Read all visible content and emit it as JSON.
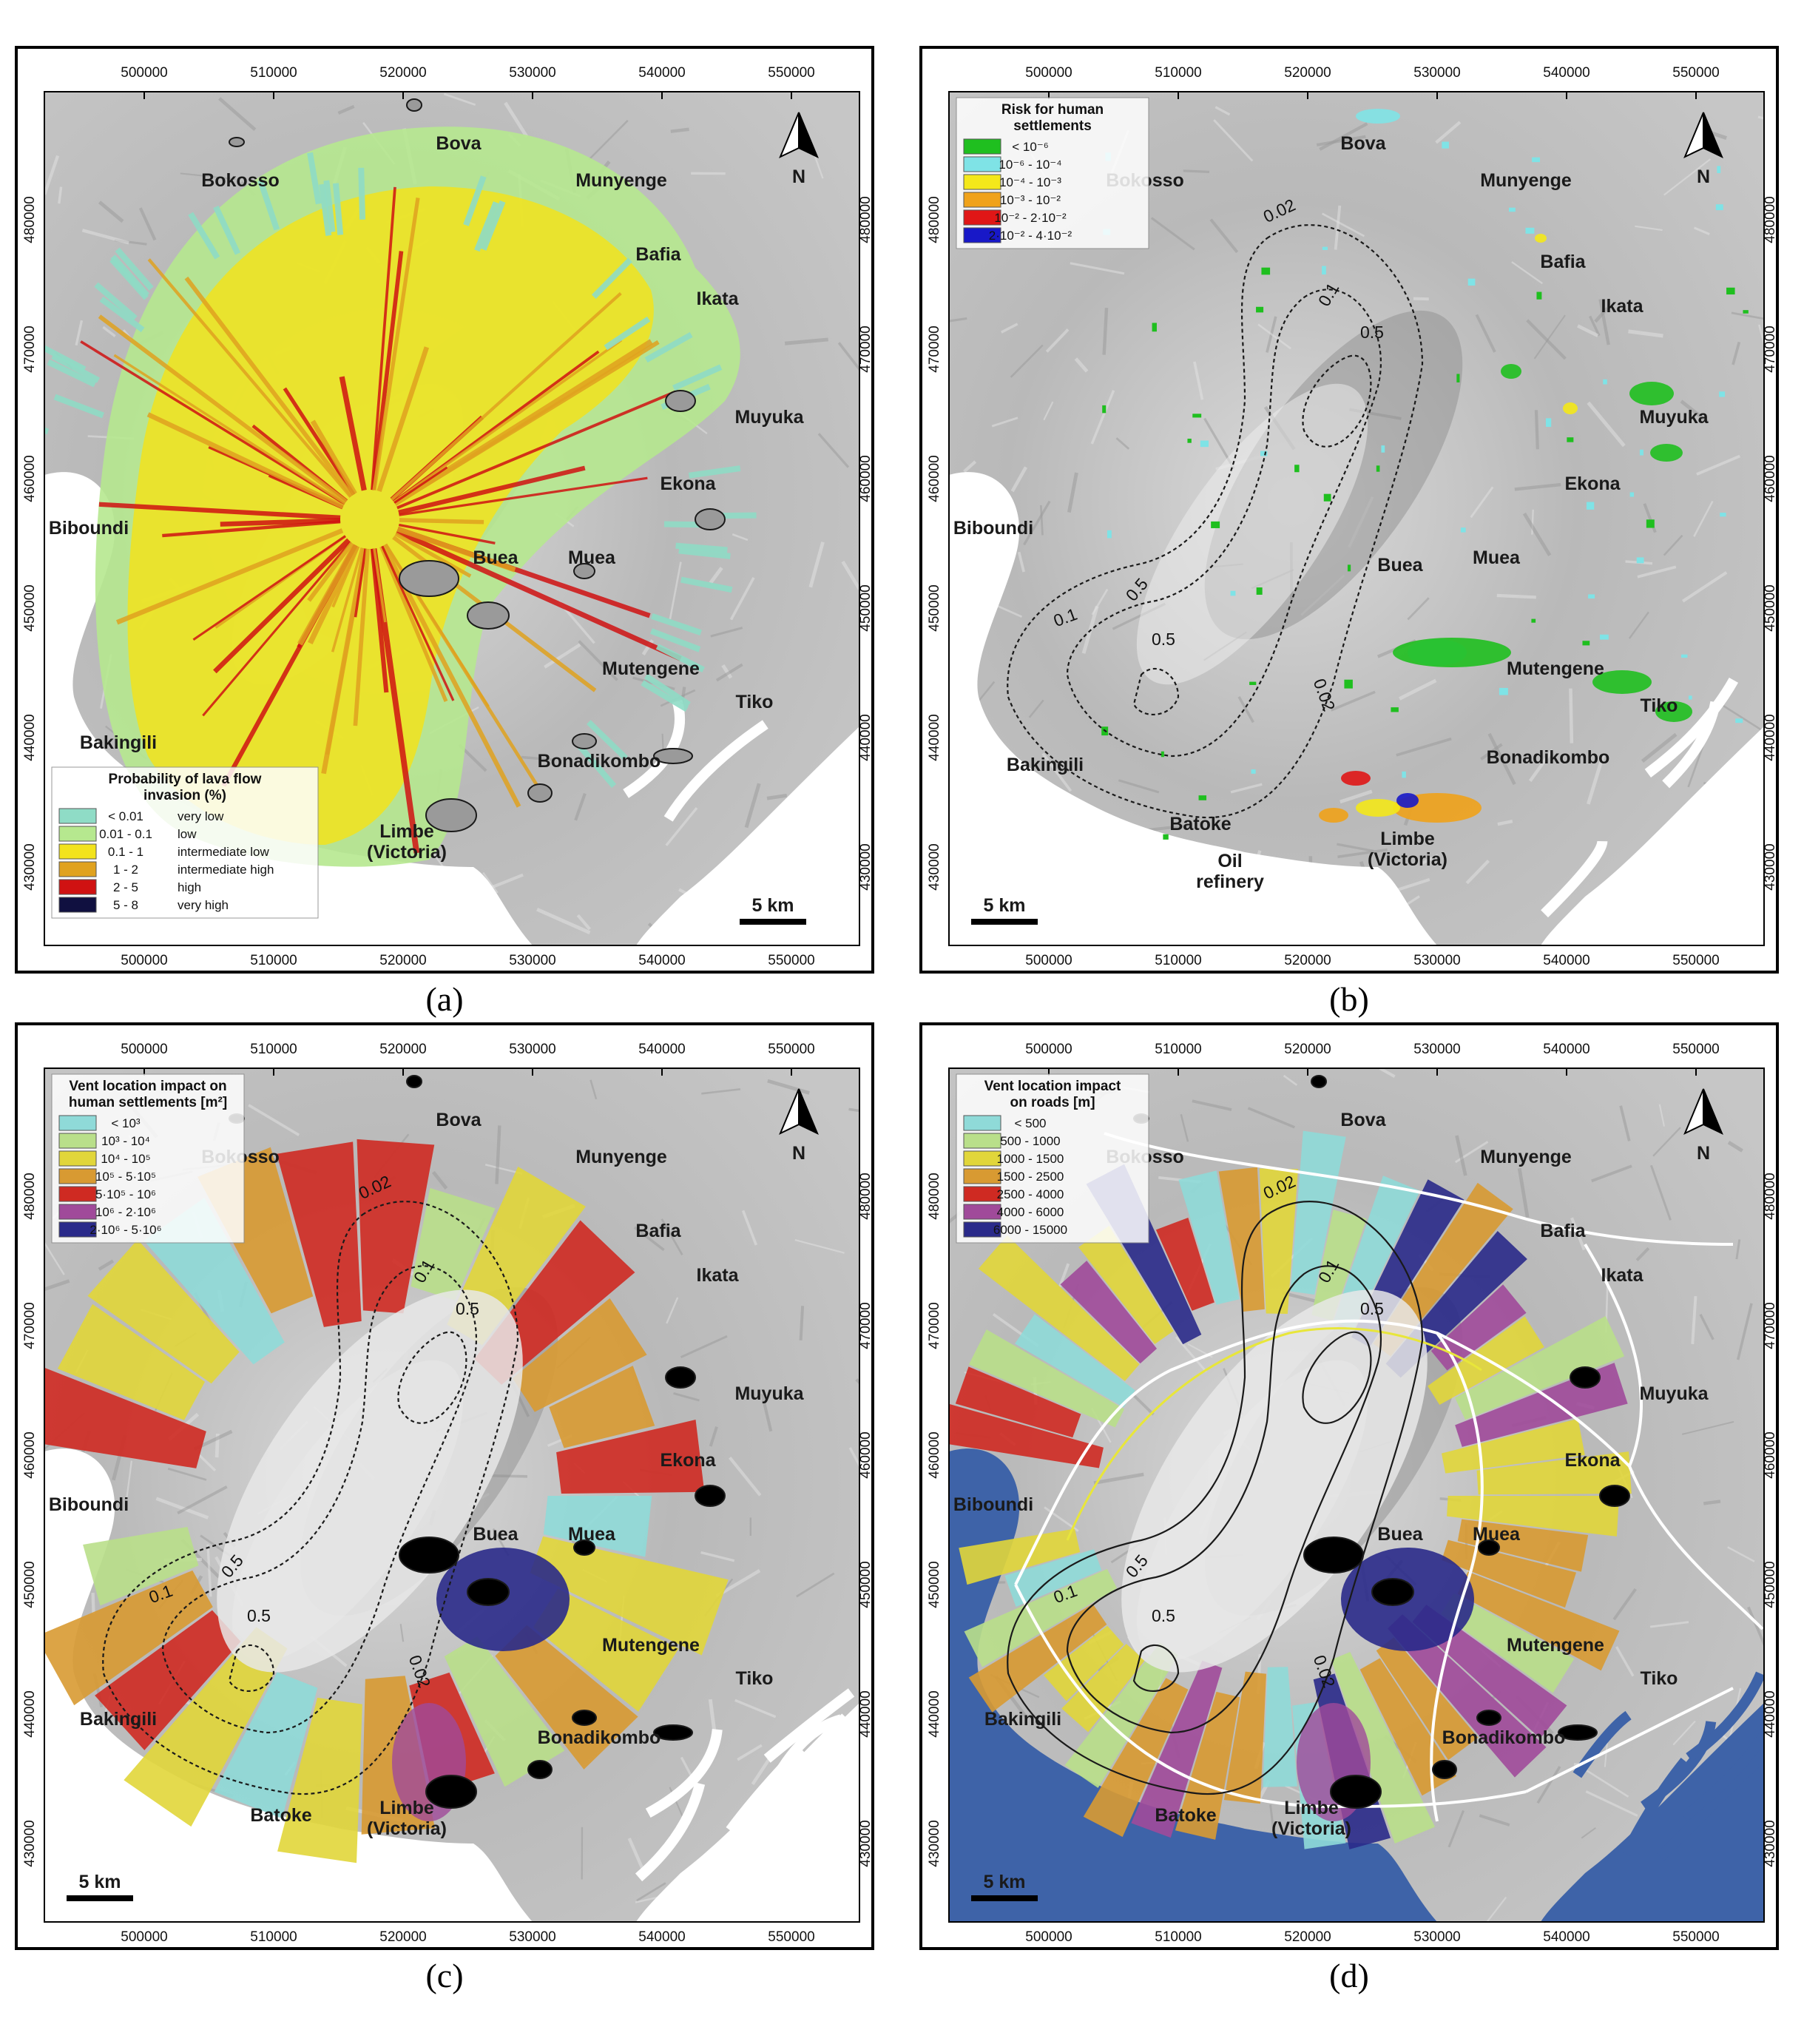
{
  "ticks": {
    "x": [
      "500000",
      "510000",
      "520000",
      "530000",
      "540000",
      "550000"
    ],
    "y": [
      "430000",
      "440000",
      "450000",
      "460000",
      "470000",
      "480000"
    ]
  },
  "north_label": "N",
  "scale_label": "5 km",
  "places": {
    "bova": "Bova",
    "bokosso": "Bokosso",
    "munyenge": "Munyenge",
    "bafia": "Bafia",
    "ikata": "Ikata",
    "muyuka": "Muyuka",
    "ekona": "Ekona",
    "biboundi": "Biboundi",
    "buea": "Buea",
    "muea": "Muea",
    "mutengene": "Mutengene",
    "tiko": "Tiko",
    "bakingili": "Bakingili",
    "bonadikombo": "Bonadikombo",
    "limbe": "Limbe",
    "victoria": "(Victoria)",
    "batoke": "Batoke",
    "oil1": "Oil",
    "oil2": "refinery"
  },
  "contour_labels": [
    "0.02",
    "0.1",
    "0.5"
  ],
  "panels": [
    {
      "letter": "(a)",
      "legend_title_1": "Probability of lava flow",
      "legend_title_2": "invasion (%)",
      "legend": [
        {
          "range": "< 0.01",
          "class": "very low",
          "color": "#8fdcc6"
        },
        {
          "range": "0.01 - 0.1",
          "class": "low",
          "color": "#b6e88f"
        },
        {
          "range": "0.1 - 1",
          "class": "intermediate low",
          "color": "#f2e31c"
        },
        {
          "range": "1 - 2",
          "class": "intermediate high",
          "color": "#e0a21f"
        },
        {
          "range": "2 - 5",
          "class": "high",
          "color": "#d01212"
        },
        {
          "range": "5 - 8",
          "class": "very high",
          "color": "#101040"
        }
      ]
    },
    {
      "letter": "(b)",
      "legend_title_1": "Risk for human",
      "legend_title_2": "settlements",
      "legend": [
        {
          "range": "< 10⁻⁶",
          "color": "#1fbf1f"
        },
        {
          "range": "10⁻⁶ - 10⁻⁴",
          "color": "#7fe3e6"
        },
        {
          "range": "10⁻⁴ - 10⁻³",
          "color": "#f4e81a"
        },
        {
          "range": "10⁻³ - 10⁻²",
          "color": "#f0a21a"
        },
        {
          "range": "10⁻² - 2·10⁻²",
          "color": "#e01616"
        },
        {
          "range": "2·10⁻² - 4·10⁻²",
          "color": "#1818c8"
        }
      ]
    },
    {
      "letter": "(c)",
      "legend_title_1": "Vent location impact on",
      "legend_title_2": "human settlements [m²]",
      "legend": [
        {
          "range": "< 10³",
          "color": "#8fdad8"
        },
        {
          "range": "10³ - 10⁴",
          "color": "#b9df8a"
        },
        {
          "range": "10⁴ - 10⁵",
          "color": "#e1d63a"
        },
        {
          "range": "10⁵ - 5·10⁵",
          "color": "#d89a32"
        },
        {
          "range": "5·10⁵ - 10⁶",
          "color": "#cf2a22"
        },
        {
          "range": "10⁶ - 2·10⁶",
          "color": "#a04a9a"
        },
        {
          "range": "2·10⁶ - 5·10⁶",
          "color": "#2a2a8a"
        }
      ]
    },
    {
      "letter": "(d)",
      "legend_title_1": "Vent location impact",
      "legend_title_2": "on roads [m]",
      "legend": [
        {
          "range": "< 500",
          "color": "#8fdad8"
        },
        {
          "range": "500 - 1000",
          "color": "#b9df8a"
        },
        {
          "range": "1000 - 1500",
          "color": "#e1d63a"
        },
        {
          "range": "1500 - 2500",
          "color": "#d89a32"
        },
        {
          "range": "2500 - 4000",
          "color": "#cf2a22"
        },
        {
          "range": "4000 - 6000",
          "color": "#a04a9a"
        },
        {
          "range": "6000 - 15000",
          "color": "#2a2a8a"
        }
      ]
    }
  ]
}
